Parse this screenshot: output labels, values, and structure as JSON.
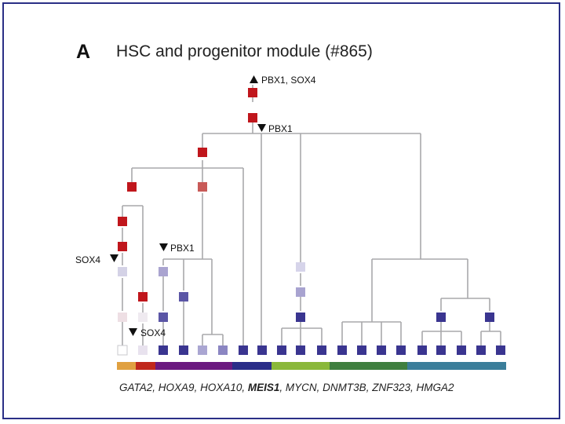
{
  "panel": {
    "letter": "A",
    "title": "HSC and progenitor module (#865)"
  },
  "annotations": {
    "top": "PBX1, SOX4",
    "upper": "PBX1",
    "middle": "PBX1",
    "left": "SOX4",
    "lower": "SOX4"
  },
  "genes": {
    "g1": "GATA2",
    "g2": "HOXA9",
    "g3": "HOXA10",
    "g4": "MEIS1",
    "g5": "MYCN",
    "g6": "DNMT3B",
    "g7": "ZNF323",
    "g8": "HMGA2"
  },
  "colors": {
    "frame": "#2a2f86",
    "up_node": "#c0161c",
    "down_node": "#3a3590",
    "branch": "#a9a9ab"
  },
  "color_bar": [
    "#e0a040",
    "#c0281c",
    "#6b1a80",
    "#2a2d88",
    "#8ab83a",
    "#3f7f3f",
    "#3b7e9a"
  ]
}
